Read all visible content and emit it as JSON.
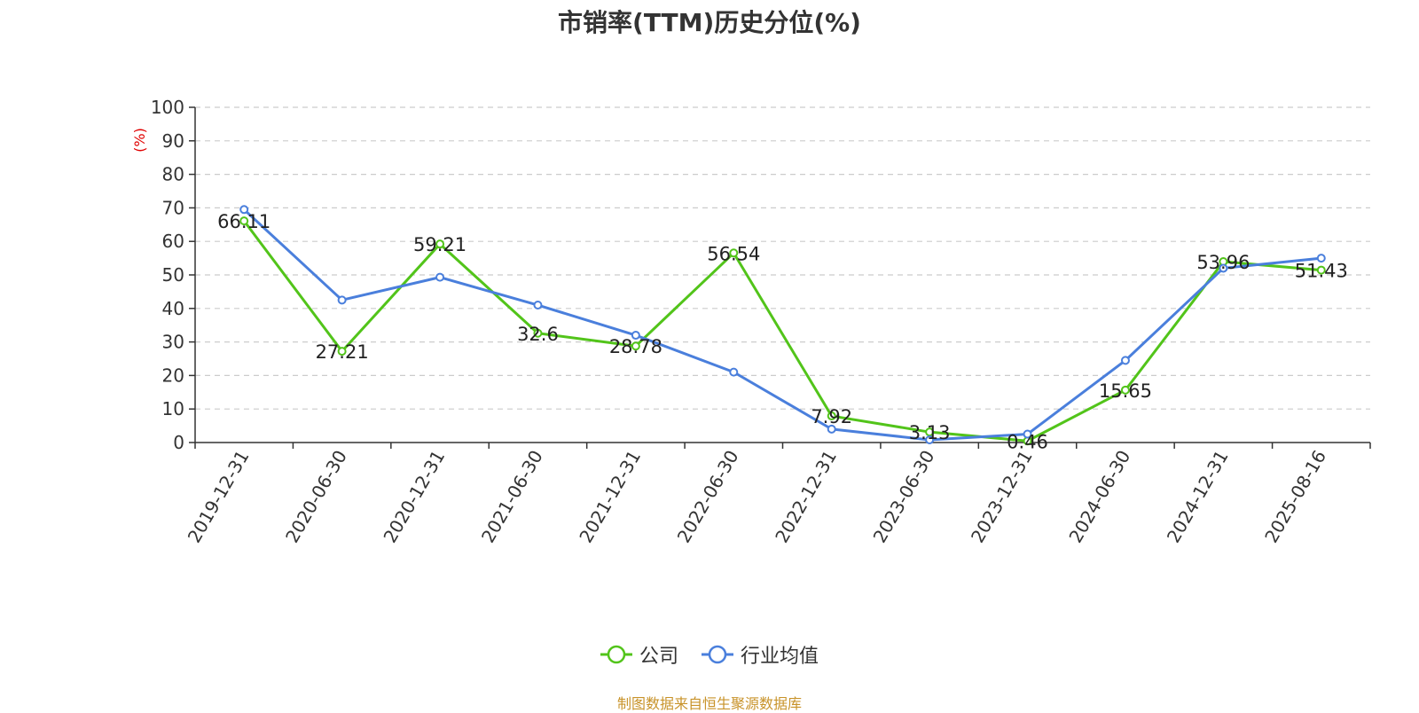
{
  "chart_data": {
    "type": "line",
    "title": "市销率(TTM)历史分位(%)",
    "ylabel": "(%)",
    "ylim": [
      0,
      100
    ],
    "yticks": [
      0,
      10,
      20,
      30,
      40,
      50,
      60,
      70,
      80,
      90,
      100
    ],
    "grid": true,
    "legend_position": "bottom",
    "x": [
      "2019-12-31",
      "2020-06-30",
      "2020-12-31",
      "2021-06-30",
      "2021-12-31",
      "2022-06-30",
      "2022-12-31",
      "2023-06-30",
      "2023-12-31",
      "2024-06-30",
      "2024-12-31",
      "2025-08-16"
    ],
    "series": [
      {
        "name": "公司",
        "color": "#52c41a",
        "values": [
          66.11,
          27.21,
          59.21,
          32.6,
          28.78,
          56.54,
          7.92,
          3.13,
          0.46,
          15.65,
          53.96,
          51.43
        ],
        "labels": [
          "66.11",
          "27.21",
          "59.21",
          "32.6",
          "28.78",
          "56.54",
          "7.92",
          "3.13",
          "0.46",
          "15.65",
          "53.96",
          "51.43"
        ]
      },
      {
        "name": "行业均值",
        "color": "#4a7fdc",
        "values": [
          69.5,
          42.5,
          49.3,
          41.0,
          32.0,
          21.0,
          4.0,
          0.8,
          2.5,
          24.5,
          52.0,
          55.0
        ]
      }
    ]
  },
  "source_note": "制图数据来自恒生聚源数据库"
}
